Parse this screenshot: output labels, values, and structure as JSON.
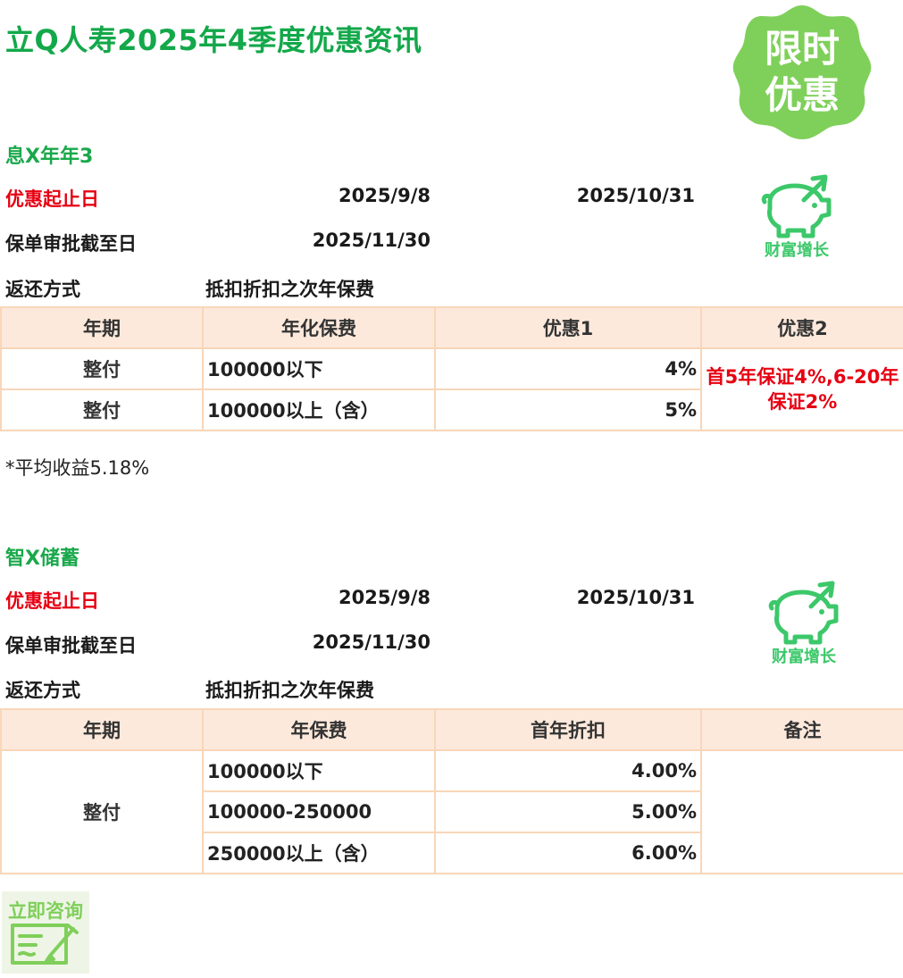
{
  "title": "立Q人寿2025年4季度优惠资讯",
  "badge": {
    "line1": "限时",
    "line2": "优惠",
    "color": "#7fd05a"
  },
  "icon_label": "财富增长",
  "products": [
    {
      "name": "息X年年3",
      "promo_label": "优惠起止日",
      "promo_start": "2025/9/8",
      "promo_end": "2025/10/31",
      "approval_label": "保单审批截至日",
      "approval_date": "2025/11/30",
      "refund_label": "返还方式",
      "refund_method": "抵扣折扣之次年保费",
      "headers": [
        "年期",
        "年化保费",
        "优惠1",
        "优惠2"
      ],
      "rows": [
        {
          "term": "整付",
          "premium": "100000以下",
          "discount": "4%"
        },
        {
          "term": "整付",
          "premium": "100000以上（含）",
          "discount": "5%"
        }
      ],
      "note": "首5年保证4%,6-20年保证2%"
    },
    {
      "name": "智X储蓄",
      "promo_label": "优惠起止日",
      "promo_start": "2025/9/8",
      "promo_end": "2025/10/31",
      "approval_label": "保单审批截至日",
      "approval_date": "2025/11/30",
      "refund_label": "返还方式",
      "refund_method": "抵扣折扣之次年保费",
      "headers": [
        "年期",
        "年保费",
        "首年折扣",
        "备注"
      ],
      "term": "整付",
      "rows": [
        {
          "premium": "100000以下",
          "discount": "4.00%"
        },
        {
          "premium": "100000-250000",
          "discount": "5.00%"
        },
        {
          "premium": "250000以上（含）",
          "discount": "6.00%"
        }
      ]
    }
  ],
  "footnote": "*平均收益5.18%",
  "consult_label": "立即咨询",
  "colors": {
    "green": "#13a84a",
    "red": "#e60012",
    "header_bg": "#fde9dc",
    "border": "#f8d6b8"
  }
}
